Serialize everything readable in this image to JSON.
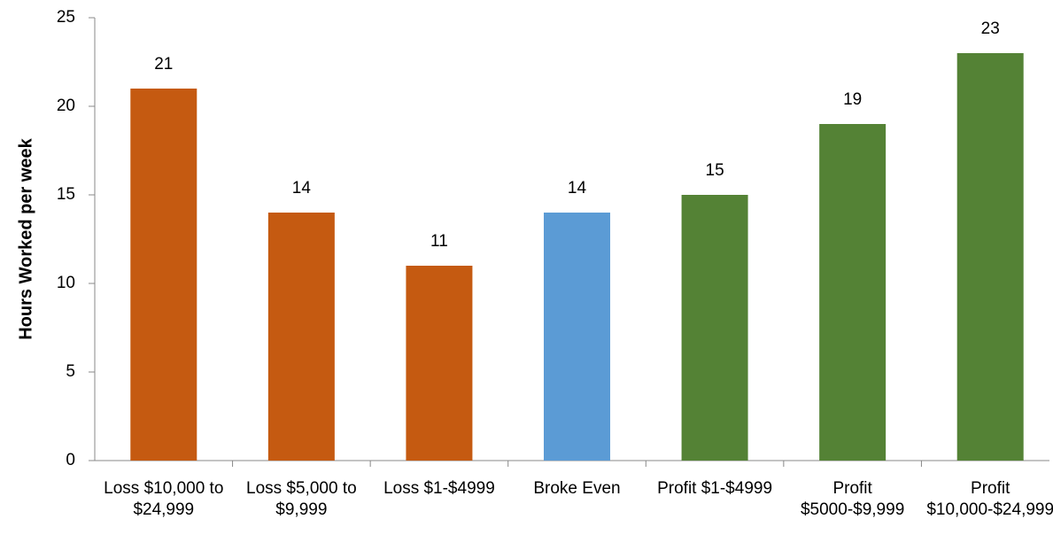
{
  "chart_data": {
    "type": "bar",
    "y_label": "Hours Worked per week",
    "categories": [
      "Loss $10,000 to $24,999",
      "Loss $5,000 to $9,999",
      "Loss $1-$4999",
      "Broke Even",
      "Profit $1-$4999",
      "Profit $5000-$9,999",
      "Profit $10,000-$24,999"
    ],
    "values": [
      21,
      14,
      11,
      14,
      15,
      19,
      23
    ],
    "colors": [
      "#c55a11",
      "#c55a11",
      "#c55a11",
      "#5b9bd5",
      "#548235",
      "#548235",
      "#548235"
    ],
    "ylim": [
      0,
      25
    ],
    "yticks": [
      0,
      5,
      10,
      15,
      20,
      25
    ],
    "grid": false
  }
}
